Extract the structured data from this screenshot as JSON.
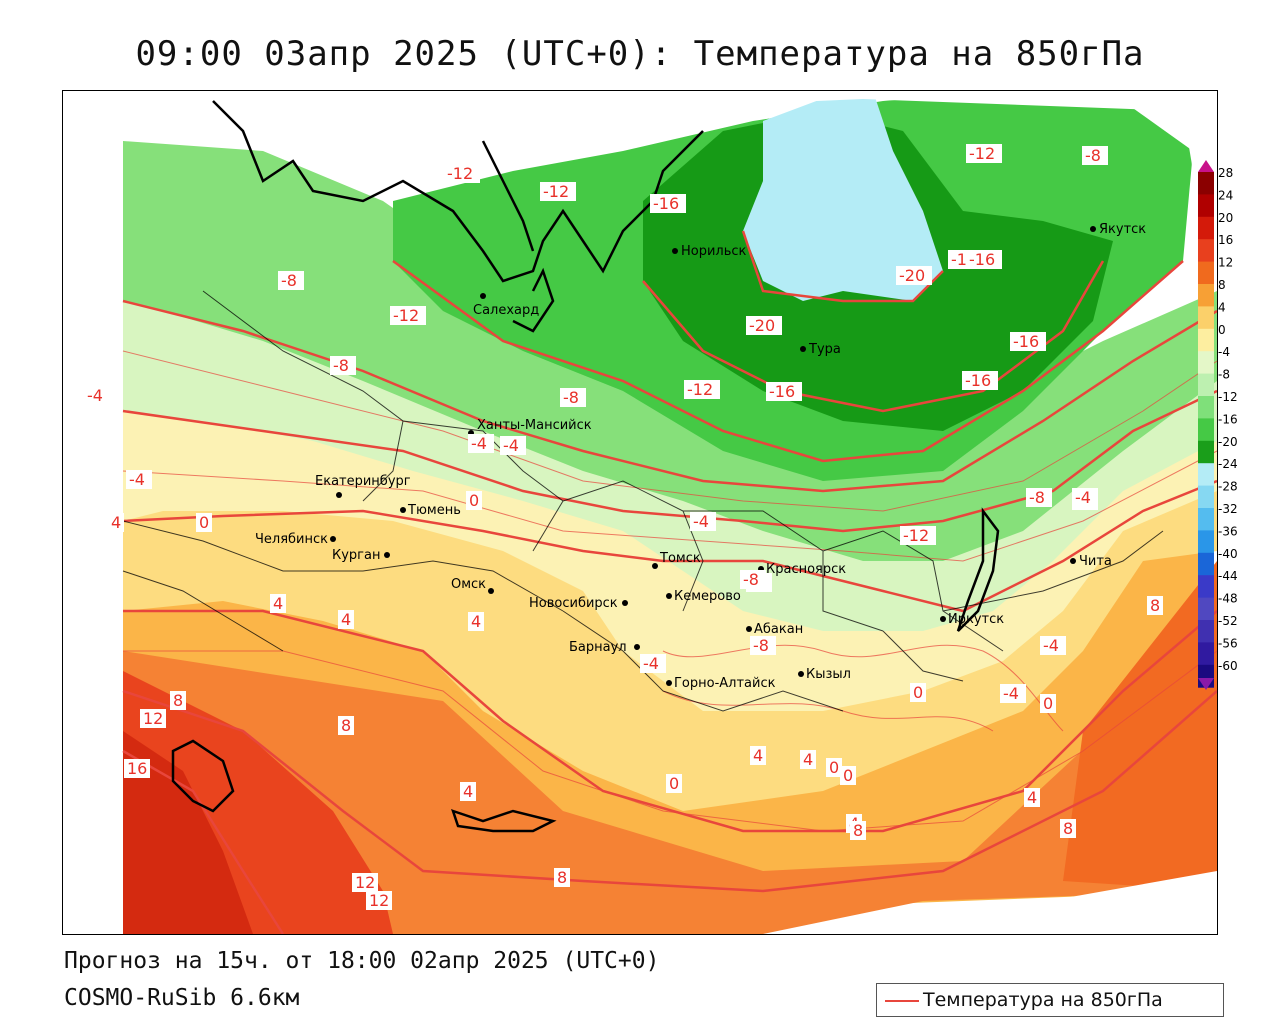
{
  "title": "09:00 03апр 2025 (UTC+0): Температура на 850гПа",
  "footer": {
    "forecast": "Прогноз на 15ч. от 18:00 02апр 2025 (UTC+0)",
    "model": "COSMO-RuSib 6.6км"
  },
  "legend": {
    "label": "Температура на 850гПа",
    "line_color": "#e8463c"
  },
  "colorbar": {
    "ticks": [
      "28",
      "24",
      "20",
      "16",
      "12",
      "8",
      "4",
      "0",
      "-4",
      "-8",
      "-12",
      "-16",
      "-20",
      "-24",
      "-28",
      "-32",
      "-36",
      "-40",
      "-44",
      "-48",
      "-52",
      "-56",
      "-60"
    ],
    "colors": [
      "#8b0000",
      "#b00000",
      "#d41a0a",
      "#e8401e",
      "#f06a1e",
      "#f7a035",
      "#fbd06a",
      "#fdeea0",
      "#e4f7c8",
      "#bdf0b0",
      "#7fe07a",
      "#45c945",
      "#1a9e1a",
      "#b4ecf6",
      "#86d8f2",
      "#54bcef",
      "#2a96e8",
      "#1a66d8",
      "#3a3ac8",
      "#5048c0",
      "#4030b0",
      "#301aa0",
      "#1a0a80"
    ]
  },
  "cities": [
    {
      "name": "Норильск"
    },
    {
      "name": "Салехард"
    },
    {
      "name": "Тура"
    },
    {
      "name": "Якутск"
    },
    {
      "name": "Ханты-Мансийск"
    },
    {
      "name": "Екатеринбург"
    },
    {
      "name": "Тюмень"
    },
    {
      "name": "Челябинск"
    },
    {
      "name": "Курган"
    },
    {
      "name": "Омск"
    },
    {
      "name": "Новосибирск"
    },
    {
      "name": "Томск"
    },
    {
      "name": "Кемерово"
    },
    {
      "name": "Красноярск"
    },
    {
      "name": "Барнаул"
    },
    {
      "name": "Абакан"
    },
    {
      "name": "Горно-Алтайск"
    },
    {
      "name": "Кызыл"
    },
    {
      "name": "Иркутск"
    },
    {
      "name": "Чита"
    }
  ],
  "isotherm_labels": [
    "-12",
    "-12",
    "-16",
    "-12",
    "-8",
    "-16",
    "-20",
    "-8",
    "-20",
    "-16",
    "-16",
    "-8",
    "-12",
    "-16",
    "-12",
    "-8",
    "-4",
    "-4",
    "-4",
    "0",
    "4",
    "0",
    "4",
    "-8",
    "-4",
    "-12",
    "-4",
    "-8",
    "-4",
    "-4",
    "-4",
    "4",
    "4",
    "8",
    "12",
    "16",
    "8",
    "4",
    "0",
    "0",
    "4",
    "4",
    "0",
    "4",
    "8",
    "12",
    "12",
    "8",
    "0",
    "0",
    "4",
    "8",
    "8",
    "-16",
    "-4",
    "-4",
    "-8",
    "-8"
  ]
}
